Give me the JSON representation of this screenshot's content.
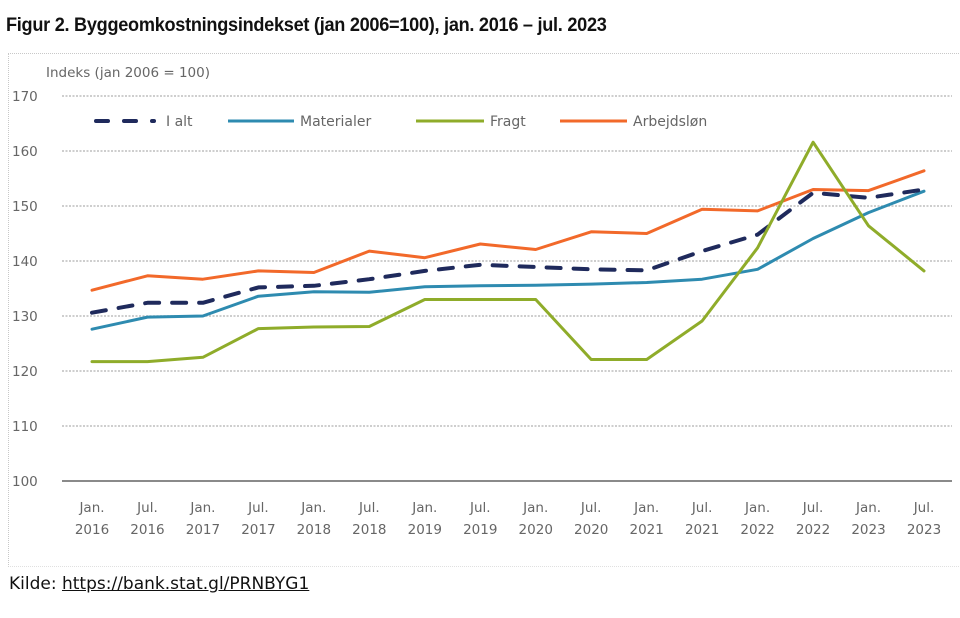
{
  "figure": {
    "title": "Figur 2. Byggeomkostningsindekset (jan 2006=100), jan. 2016 – jul. 2023",
    "source_label": "Kilde:",
    "source_link": "https://bank.stat.gl/PRNBYG1"
  },
  "chart_data": {
    "type": "line",
    "title": "Figur 2. Byggeomkostningsindekset (jan 2006=100), jan. 2016 – jul. 2023",
    "ylabel": "Indeks (jan 2006 = 100)",
    "xlabel": "",
    "ylim": [
      100,
      170
    ],
    "yticks": [
      "100",
      "110",
      "120",
      "130",
      "140",
      "150",
      "160",
      "170"
    ],
    "grid": true,
    "legend_position": "top-left",
    "categories": [
      {
        "month": "Jan.",
        "year": "2016"
      },
      {
        "month": "Jul.",
        "year": "2016"
      },
      {
        "month": "Jan.",
        "year": "2017"
      },
      {
        "month": "Jul.",
        "year": "2017"
      },
      {
        "month": "Jan.",
        "year": "2018"
      },
      {
        "month": "Jul.",
        "year": "2018"
      },
      {
        "month": "Jan.",
        "year": "2019"
      },
      {
        "month": "Jul.",
        "year": "2019"
      },
      {
        "month": "Jan.",
        "year": "2020"
      },
      {
        "month": "Jul.",
        "year": "2020"
      },
      {
        "month": "Jan.",
        "year": "2021"
      },
      {
        "month": "Jul.",
        "year": "2021"
      },
      {
        "month": "Jan.",
        "year": "2022"
      },
      {
        "month": "Jul.",
        "year": "2022"
      },
      {
        "month": "Jan.",
        "year": "2023"
      },
      {
        "month": "Jul.",
        "year": "2023"
      }
    ],
    "series": [
      {
        "name": "I alt",
        "color": "#1f2a5c",
        "style": "dashed",
        "values": [
          130.6,
          132.4,
          132.4,
          135.2,
          135.5,
          136.7,
          138.2,
          139.3,
          138.9,
          138.5,
          138.3,
          141.8,
          144.8,
          152.4,
          151.5,
          153.0
        ]
      },
      {
        "name": "Materialer",
        "color": "#2e8bb0",
        "style": "solid",
        "values": [
          127.6,
          129.8,
          130.0,
          133.6,
          134.4,
          134.3,
          135.3,
          135.5,
          135.6,
          135.8,
          136.1,
          136.7,
          138.5,
          144.1,
          148.8,
          152.7
        ]
      },
      {
        "name": "Fragt",
        "color": "#8fac2a",
        "style": "solid",
        "values": [
          121.7,
          121.7,
          122.5,
          127.7,
          128.0,
          128.1,
          133.0,
          133.0,
          133.0,
          122.1,
          122.1,
          129.1,
          142.4,
          161.6,
          146.4,
          138.2
        ]
      },
      {
        "name": "Arbejdsløn",
        "color": "#f2692a",
        "style": "solid",
        "values": [
          134.7,
          137.3,
          136.7,
          138.2,
          137.9,
          141.8,
          140.6,
          143.1,
          142.1,
          145.3,
          145.0,
          149.4,
          149.1,
          153.0,
          152.8,
          156.4
        ]
      }
    ]
  }
}
